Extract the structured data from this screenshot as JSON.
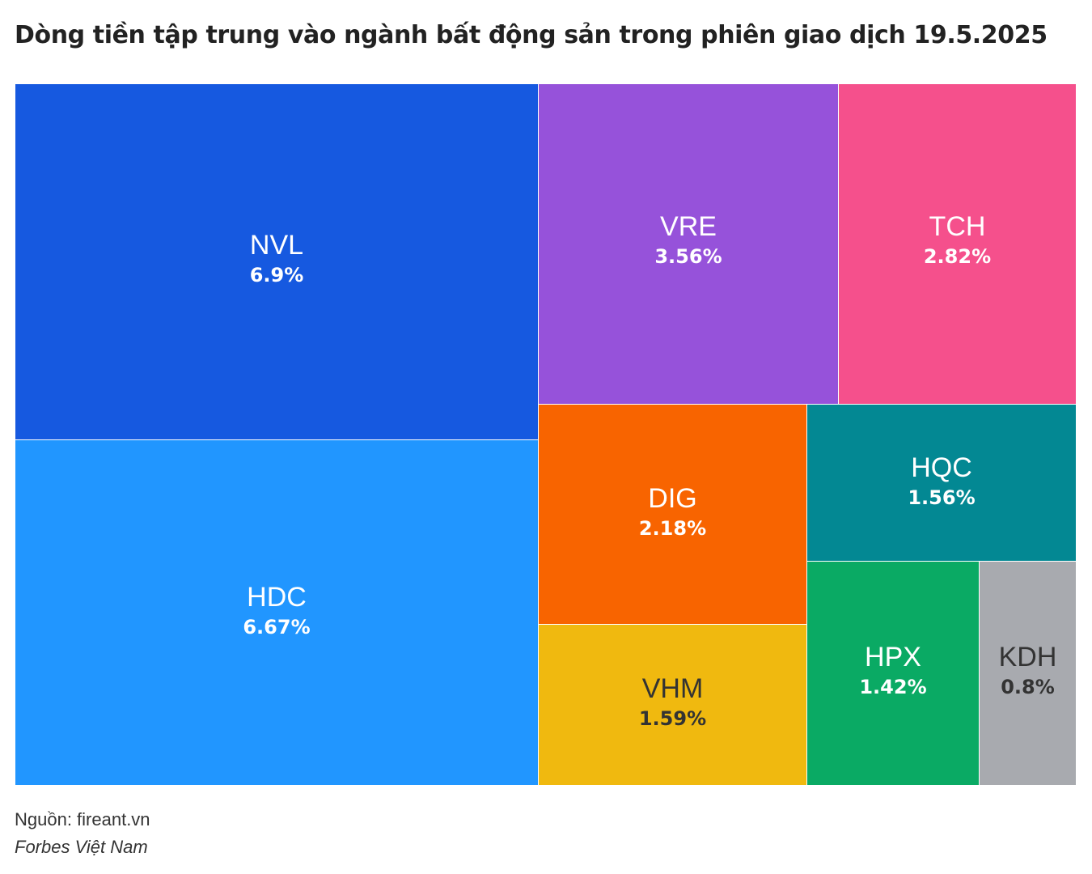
{
  "title": "Dòng tiền tập trung vào ngành bất động sản trong phiên giao dịch 19.5.2025",
  "footer": {
    "source": "Nguồn: fireant.vn",
    "credit": "Forbes Việt Nam"
  },
  "chart_data": {
    "type": "treemap",
    "title": "Dòng tiền tập trung vào ngành bất động sản trong phiên giao dịch 19.5.2025",
    "items": [
      {
        "label": "NVL",
        "value": 6.9,
        "value_label": "6.9%",
        "color": "#1659E0",
        "text_color": "#ffffff"
      },
      {
        "label": "HDC",
        "value": 6.67,
        "value_label": "6.67%",
        "color": "#2196FF",
        "text_color": "#ffffff"
      },
      {
        "label": "VRE",
        "value": 3.56,
        "value_label": "3.56%",
        "color": "#9652DA",
        "text_color": "#ffffff"
      },
      {
        "label": "TCH",
        "value": 2.82,
        "value_label": "2.82%",
        "color": "#F5508C",
        "text_color": "#ffffff"
      },
      {
        "label": "DIG",
        "value": 2.18,
        "value_label": "2.18%",
        "color": "#F86400",
        "text_color": "#ffffff"
      },
      {
        "label": "VHM",
        "value": 1.59,
        "value_label": "1.59%",
        "color": "#F0B90F",
        "text_color": "#333333"
      },
      {
        "label": "HQC",
        "value": 1.56,
        "value_label": "1.56%",
        "color": "#038893",
        "text_color": "#ffffff"
      },
      {
        "label": "HPX",
        "value": 1.42,
        "value_label": "1.42%",
        "color": "#0AAA64",
        "text_color": "#ffffff"
      },
      {
        "label": "KDH",
        "value": 0.8,
        "value_label": "0.8%",
        "color": "#A8AAAF",
        "text_color": "#333333"
      }
    ]
  }
}
